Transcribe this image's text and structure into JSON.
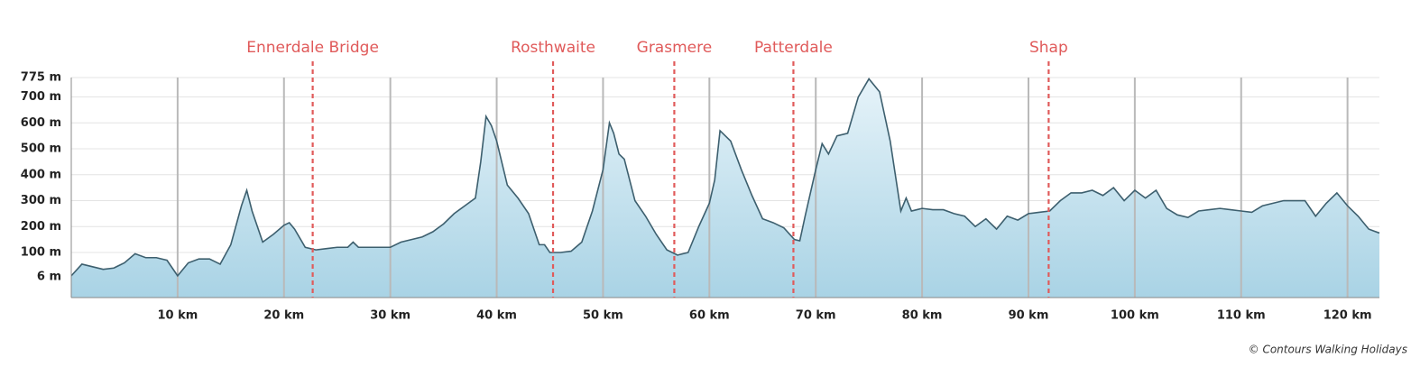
{
  "chart_data": {
    "type": "area",
    "x": [
      0,
      1,
      2,
      3,
      4,
      5,
      6,
      7,
      8,
      9,
      10,
      11,
      12,
      13,
      14,
      15,
      16,
      16.5,
      17,
      18,
      19,
      20,
      20.5,
      21,
      22,
      23,
      24,
      25,
      26,
      26.5,
      27,
      28,
      29,
      30,
      31,
      32,
      33,
      34,
      35,
      36,
      37,
      38,
      38.5,
      39,
      39.5,
      40,
      41,
      42,
      43,
      44,
      44.5,
      45,
      46,
      47,
      48,
      49,
      50,
      50.6,
      51,
      51.5,
      52,
      53,
      54,
      55,
      56,
      57,
      58,
      59,
      60,
      60.5,
      61,
      62,
      63,
      64,
      65,
      66,
      67,
      68,
      68.5,
      69,
      70,
      70.6,
      71.2,
      72,
      73,
      74,
      75,
      76,
      77,
      78,
      78.5,
      79,
      80,
      81,
      82,
      83,
      84,
      85,
      86,
      87,
      88,
      89,
      90,
      91,
      92,
      93,
      94,
      95,
      96,
      97,
      98,
      99,
      100,
      101,
      102,
      103,
      104,
      105,
      106,
      107,
      108,
      109,
      110,
      111,
      112,
      113,
      114,
      115,
      116,
      117,
      118,
      119,
      120,
      121,
      122,
      123
    ],
    "series": [
      {
        "color": "#3d5f6e",
        "values": [
          10,
          55,
          45,
          35,
          40,
          60,
          95,
          80,
          80,
          70,
          10,
          60,
          75,
          75,
          55,
          130,
          280,
          340,
          260,
          140,
          170,
          205,
          215,
          190,
          120,
          110,
          115,
          120,
          120,
          140,
          120,
          120,
          120,
          120,
          140,
          150,
          160,
          180,
          210,
          250,
          280,
          310,
          450,
          625,
          590,
          530,
          360,
          310,
          250,
          130,
          130,
          100,
          100,
          105,
          140,
          260,
          420,
          600,
          560,
          480,
          460,
          300,
          240,
          170,
          110,
          90,
          100,
          200,
          290,
          380,
          570,
          530,
          420,
          320,
          230,
          215,
          195,
          150,
          145,
          240,
          420,
          520,
          480,
          550,
          560,
          700,
          770,
          720,
          530,
          260,
          310,
          260,
          270,
          265,
          265,
          250,
          240,
          200,
          230,
          190,
          240,
          225,
          250,
          255,
          260,
          300,
          330,
          330,
          340,
          320,
          350,
          300,
          340,
          310,
          340,
          270,
          245,
          235,
          260,
          265,
          270,
          265,
          260,
          255,
          280,
          290,
          300,
          300,
          300,
          240,
          290,
          330,
          280,
          240,
          190,
          175
        ]
      }
    ],
    "xlim": [
      0,
      123
    ],
    "ylim": [
      -74,
      775
    ],
    "xticks": [
      {
        "value": 10,
        "label": "10 km"
      },
      {
        "value": 20,
        "label": "20 km"
      },
      {
        "value": 30,
        "label": "30 km"
      },
      {
        "value": 40,
        "label": "40 km"
      },
      {
        "value": 50,
        "label": "50 km"
      },
      {
        "value": 60,
        "label": "60 km"
      },
      {
        "value": 70,
        "label": "70 km"
      },
      {
        "value": 80,
        "label": "80 km"
      },
      {
        "value": 90,
        "label": "90 km"
      },
      {
        "value": 100,
        "label": "100 km"
      },
      {
        "value": 110,
        "label": "110 km"
      },
      {
        "value": 120,
        "label": "120 km"
      }
    ],
    "yticks": [
      {
        "value": 6,
        "label": "6 m"
      },
      {
        "value": 100,
        "label": "100 m"
      },
      {
        "value": 200,
        "label": "200 m"
      },
      {
        "value": 300,
        "label": "300 m"
      },
      {
        "value": 400,
        "label": "400 m"
      },
      {
        "value": 500,
        "label": "500 m"
      },
      {
        "value": 600,
        "label": "600 m"
      },
      {
        "value": 700,
        "label": "700 m"
      },
      {
        "value": 775,
        "label": "775 m"
      }
    ],
    "grid": true,
    "markers": [
      {
        "label": "Ennerdale Bridge",
        "x": 22.7
      },
      {
        "label": "Rosthwaite",
        "x": 45.3
      },
      {
        "label": "Grasmere",
        "x": 56.7
      },
      {
        "label": "Patterdale",
        "x": 67.9
      },
      {
        "label": "Shap",
        "x": 91.9
      }
    ],
    "marker_color": "#e05a5a",
    "credit": "© Contours Walking Holidays"
  }
}
